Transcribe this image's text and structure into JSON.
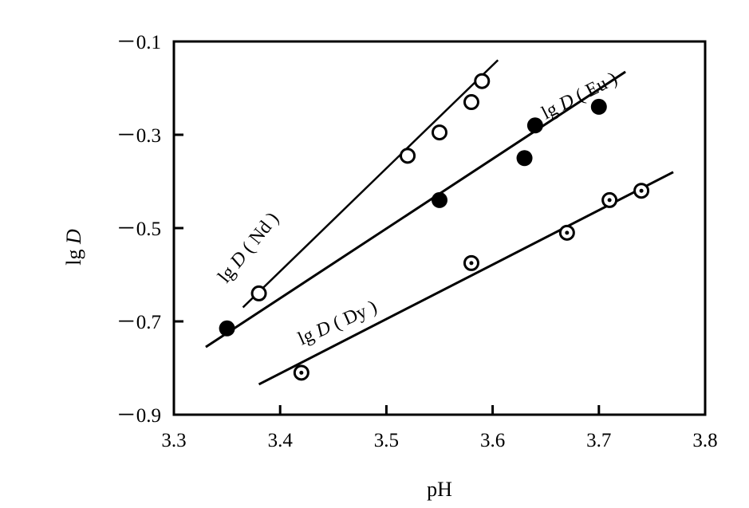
{
  "chart_data": {
    "type": "scatter",
    "xlabel": "pH",
    "ylabel_prefix": "lg",
    "ylabel_var": "D",
    "xlim": [
      3.3,
      3.8
    ],
    "ylim": [
      -0.9,
      -0.1
    ],
    "grid": false,
    "x_ticks": [
      {
        "value": 3.3,
        "label": "3.3"
      },
      {
        "value": 3.4,
        "label": "3.4"
      },
      {
        "value": 3.5,
        "label": "3.5"
      },
      {
        "value": 3.6,
        "label": "3.6"
      },
      {
        "value": 3.7,
        "label": "3.7"
      },
      {
        "value": 3.8,
        "label": "3.8"
      }
    ],
    "y_ticks": [
      {
        "value": -0.1,
        "label": "－0.1"
      },
      {
        "value": -0.3,
        "label": "－0.3"
      },
      {
        "value": -0.5,
        "label": "－0.5"
      },
      {
        "value": -0.7,
        "label": "－0.7"
      },
      {
        "value": -0.9,
        "label": "－0.9"
      }
    ],
    "series": [
      {
        "name": "lg D ( Nd )",
        "label_prefix": "lg",
        "label_var": "D",
        "label_paren": "( Nd )",
        "marker": "open-circle",
        "points": [
          [
            3.38,
            -0.64
          ],
          [
            3.52,
            -0.345
          ],
          [
            3.55,
            -0.295
          ],
          [
            3.58,
            -0.23
          ],
          [
            3.59,
            -0.185
          ]
        ],
        "fit_line": [
          [
            3.365,
            -0.67
          ],
          [
            3.605,
            -0.14
          ]
        ]
      },
      {
        "name": "lg D ( Eu )",
        "label_prefix": "lg",
        "label_var": "D",
        "label_paren": "( Eu )",
        "marker": "filled-circle",
        "points": [
          [
            3.35,
            -0.715
          ],
          [
            3.55,
            -0.44
          ],
          [
            3.63,
            -0.35
          ],
          [
            3.64,
            -0.28
          ],
          [
            3.7,
            -0.24
          ]
        ],
        "fit_line": [
          [
            3.33,
            -0.755
          ],
          [
            3.725,
            -0.165
          ]
        ]
      },
      {
        "name": "lg D ( Dy )",
        "label_prefix": "lg",
        "label_var": "D",
        "label_paren": "( Dy )",
        "marker": "dotted-circle",
        "points": [
          [
            3.42,
            -0.81
          ],
          [
            3.58,
            -0.575
          ],
          [
            3.67,
            -0.51
          ],
          [
            3.71,
            -0.44
          ],
          [
            3.74,
            -0.42
          ]
        ],
        "fit_line": [
          [
            3.38,
            -0.835
          ],
          [
            3.77,
            -0.38
          ]
        ]
      }
    ]
  }
}
